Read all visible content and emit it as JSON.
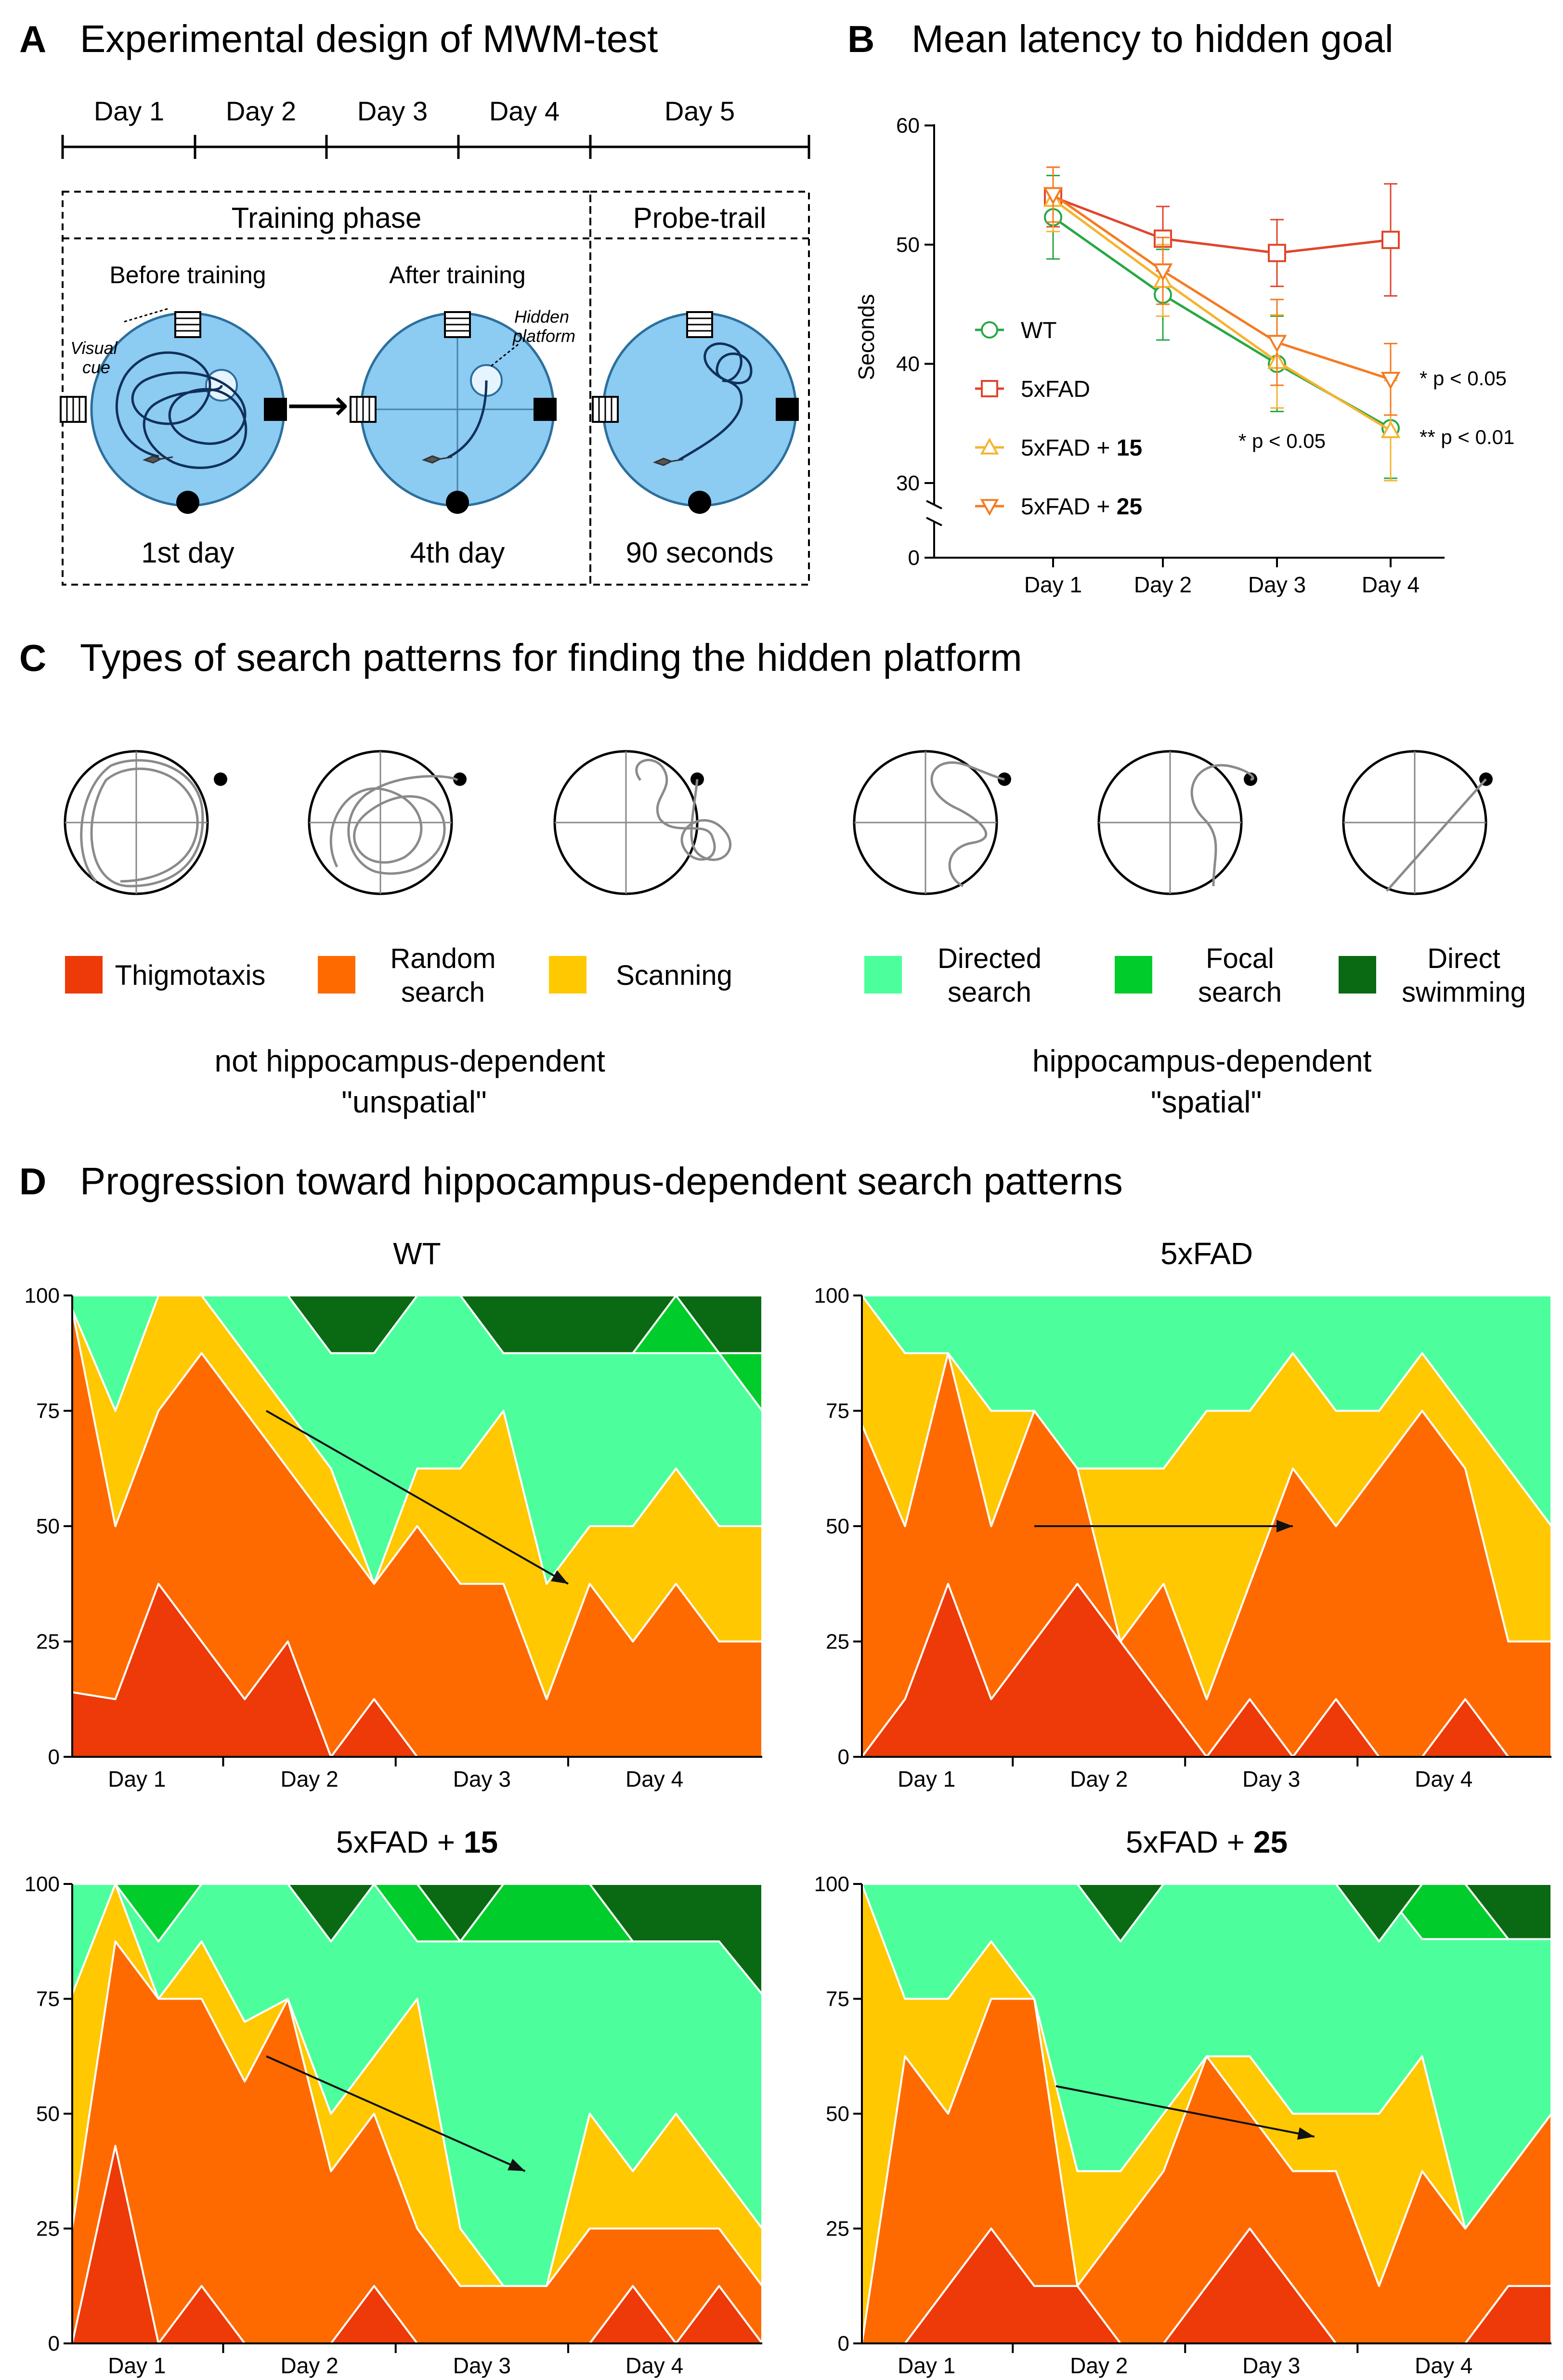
{
  "panels": {
    "A": {
      "letter": "A",
      "title": "Experimental design of MWM-test",
      "days": [
        "Day 1",
        "Day 2",
        "Day 3",
        "Day 4",
        "Day 5"
      ],
      "training_phase": "Training phase",
      "probe_trial": "Probe-trail",
      "before_training": "Before training",
      "after_training": "After training",
      "visual_cue": [
        "Visual",
        "cue"
      ],
      "hidden_platform": [
        "Hidden",
        "platform"
      ],
      "captions": [
        "1st day",
        "4th day",
        "90 seconds"
      ]
    },
    "B": {
      "letter": "B",
      "title": "Mean latency to hidden goal",
      "significance": {
        "s1": "* p < 0.05",
        "s2": "* p < 0.05",
        "s3": "** p < 0.01"
      }
    },
    "C": {
      "letter": "C",
      "title": "Types of search patterns for finding the hidden platform",
      "legend": [
        {
          "lines": [
            "Thigmotaxis"
          ],
          "color": "#EE3A08"
        },
        {
          "lines": [
            "Random",
            "search"
          ],
          "color": "#FF6A00"
        },
        {
          "lines": [
            "Scanning"
          ],
          "color": "#FFC800"
        },
        {
          "lines": [
            "Directed",
            "search"
          ],
          "color": "#4CFF9C"
        },
        {
          "lines": [
            "Focal",
            "search"
          ],
          "color": "#00CC2B"
        },
        {
          "lines": [
            "Direct",
            "swimming"
          ],
          "color": "#0A6A14"
        }
      ],
      "groups": [
        {
          "lines": [
            "not hippocampus-dependent",
            "\"unspatial\""
          ]
        },
        {
          "lines": [
            "hippocampus-dependent",
            "\"spatial\""
          ]
        }
      ]
    },
    "D": {
      "letter": "D",
      "title": "Progression toward hippocampus-dependent search patterns"
    }
  },
  "chart_data": [
    {
      "id": "B",
      "type": "line",
      "title": "Mean latency to hidden goal",
      "ylabel": "Seconds",
      "xlabel": "",
      "categories": [
        "Day 1",
        "Day 2",
        "Day 3",
        "Day 4"
      ],
      "yticks_upper": [
        30,
        40,
        50,
        60
      ],
      "yticks_lower": [
        0
      ],
      "ylim": [
        28,
        60
      ],
      "axis_break": true,
      "grid": false,
      "legend_position": "center-left",
      "series": [
        {
          "name": "WT",
          "name_bold": "",
          "color": "#27A844",
          "marker": "circle",
          "values": [
            52.3,
            45.8,
            40.0,
            34.6
          ],
          "errors": [
            3.5,
            3.8,
            4.0,
            4.2
          ]
        },
        {
          "name": "5xFAD",
          "name_bold": "",
          "color": "#E0452C",
          "marker": "square",
          "values": [
            54.0,
            50.5,
            49.3,
            50.4
          ],
          "errors": [
            2.5,
            2.7,
            2.8,
            4.7
          ]
        },
        {
          "name": "5xFAD + ",
          "name_bold": "15",
          "color": "#F6B32F",
          "marker": "triangle-up",
          "values": [
            53.8,
            47.0,
            40.2,
            34.4
          ],
          "errors": [
            2.7,
            3.0,
            3.9,
            4.2
          ]
        },
        {
          "name": "5xFAD + ",
          "name_bold": "25",
          "color": "#F47B22",
          "marker": "triangle-down",
          "values": [
            54.2,
            47.8,
            41.8,
            38.7
          ],
          "errors": [
            2.3,
            2.8,
            3.6,
            3.0
          ]
        }
      ]
    },
    {
      "id": "D",
      "type": "area",
      "stacked": true,
      "series_names": [
        "Thigmotaxis",
        "Random search",
        "Scanning",
        "Directed search",
        "Focal search",
        "Direct swimming"
      ],
      "colors": [
        "#EE3A08",
        "#FF6A00",
        "#FFC800",
        "#4CFF9C",
        "#00CC2B",
        "#0A6A14"
      ],
      "categories": [
        "Day 1",
        "Day 2",
        "Day 3",
        "Day 4"
      ],
      "yticks": [
        0,
        25,
        50,
        75,
        100
      ],
      "ylim": [
        0,
        100
      ],
      "trials_per_day": 4,
      "charts": [
        {
          "title_plain": "WT",
          "title_bold": "",
          "boundaries": [
            [
              14,
              12.5,
              37.5,
              25,
              12.5,
              25,
              0,
              12.5,
              0,
              0,
              0,
              0,
              0,
              0,
              0,
              0,
              0
            ],
            [
              97,
              50,
              75,
              87.5,
              75,
              62.5,
              50,
              37.5,
              50,
              37.5,
              37.5,
              12.5,
              37.5,
              25,
              37.5,
              25,
              25
            ],
            [
              97,
              75,
              100,
              100,
              87.5,
              75,
              62.5,
              37.5,
              62.5,
              62.5,
              75,
              37.5,
              50,
              50,
              62.5,
              50,
              50
            ],
            [
              100,
              100,
              100,
              100,
              100,
              100,
              87.5,
              87.5,
              100,
              100,
              87.5,
              87.5,
              87.5,
              87.5,
              87.5,
              87.5,
              75
            ],
            [
              100,
              100,
              100,
              100,
              100,
              100,
              87.5,
              87.5,
              100,
              100,
              87.5,
              87.5,
              87.5,
              87.5,
              100,
              87.5,
              87.5
            ]
          ],
          "arrow_from": [
            4.5,
            75
          ],
          "arrow_to": [
            11.5,
            37.5
          ]
        },
        {
          "title_plain": "5xFAD",
          "title_bold": "",
          "boundaries": [
            [
              0,
              12.5,
              37.5,
              12.5,
              25,
              37.5,
              25,
              12.5,
              0,
              12.5,
              0,
              12.5,
              0,
              0,
              12.5,
              0,
              0
            ],
            [
              72,
              50,
              87.5,
              50,
              75,
              62.5,
              25,
              37.5,
              12.5,
              37.5,
              62.5,
              50,
              62.5,
              75,
              62.5,
              25,
              25
            ],
            [
              100,
              87.5,
              87.5,
              75,
              75,
              62.5,
              62.5,
              62.5,
              75,
              75,
              87.5,
              75,
              75,
              87.5,
              75,
              62.5,
              50
            ],
            [
              100,
              100,
              100,
              100,
              100,
              100,
              100,
              100,
              100,
              100,
              100,
              100,
              100,
              100,
              100,
              100,
              100
            ],
            [
              100,
              100,
              100,
              100,
              100,
              100,
              100,
              100,
              100,
              100,
              100,
              100,
              100,
              100,
              100,
              100,
              100
            ]
          ],
          "arrow_from": [
            4,
            50
          ],
          "arrow_to": [
            10,
            50
          ]
        },
        {
          "title_plain": "5xFAD + ",
          "title_bold": "15",
          "boundaries": [
            [
              0,
              43,
              0,
              12.5,
              0,
              0,
              0,
              12.5,
              0,
              0,
              0,
              0,
              0,
              12.5,
              0,
              12.5,
              0
            ],
            [
              25,
              87.5,
              75,
              75,
              57,
              75,
              37.5,
              50,
              25,
              12.5,
              12.5,
              12.5,
              25,
              25,
              25,
              25,
              12.5
            ],
            [
              76,
              100,
              75,
              87.5,
              70,
              75,
              50,
              62.5,
              75,
              25,
              12.5,
              12.5,
              50,
              37.5,
              50,
              37.5,
              25
            ],
            [
              100,
              100,
              87.5,
              100,
              100,
              100,
              100,
              100,
              87.5,
              87.5,
              87.5,
              87.5,
              87.5,
              87.5,
              87.5,
              87.5,
              87.5
            ],
            [
              100,
              100,
              100,
              100,
              100,
              100,
              87.5,
              100,
              100,
              87.5,
              100,
              100,
              100,
              87.5,
              87.5,
              87.5,
              76
            ]
          ],
          "arrow_from": [
            4.5,
            62.5
          ],
          "arrow_to": [
            10.5,
            37.5
          ]
        },
        {
          "title_plain": "5xFAD + ",
          "title_bold": "25",
          "boundaries": [
            [
              0,
              0,
              12.5,
              25,
              12.5,
              12.5,
              0,
              0,
              12.5,
              25,
              12.5,
              0,
              0,
              0,
              0,
              12.5,
              12.5
            ],
            [
              0,
              62.5,
              50,
              75,
              75,
              12.5,
              25,
              37.5,
              62.5,
              50,
              37.5,
              37.5,
              12.5,
              37.5,
              25,
              37.5,
              50
            ],
            [
              100,
              75,
              75,
              87.5,
              75,
              37.5,
              37.5,
              50,
              62.5,
              62.5,
              50,
              50,
              50,
              62.5,
              25,
              37.5,
              50
            ],
            [
              100,
              100,
              100,
              100,
              100,
              100,
              100,
              100,
              100,
              100,
              100,
              100,
              100,
              88,
              88,
              88,
              88
            ],
            [
              100,
              100,
              100,
              100,
              100,
              100,
              87.5,
              100,
              100,
              100,
              100,
              100,
              87.5,
              100,
              100,
              88,
              88
            ]
          ],
          "arrow_from": [
            4.5,
            56
          ],
          "arrow_to": [
            10.5,
            45
          ]
        }
      ]
    }
  ]
}
